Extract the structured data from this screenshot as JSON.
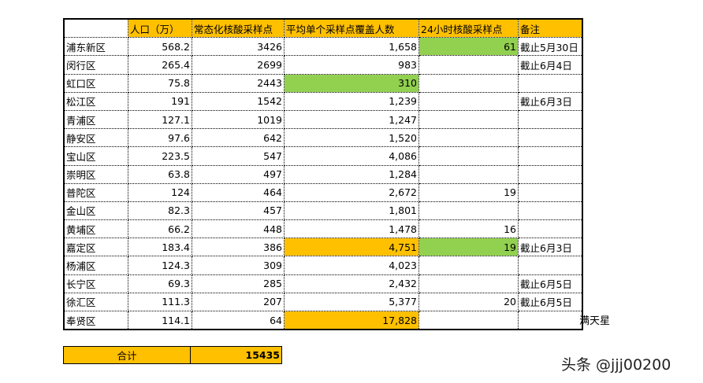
{
  "table": {
    "header": [
      null,
      "人口（万）",
      "常态化核酸采样点",
      "平均单个采样点覆盖人数",
      "24小时核酸采样点",
      "备注"
    ],
    "header_color": "#ffc000",
    "rows": [
      [
        "浦东新区",
        "568.2",
        "3426",
        "1,658",
        "61",
        "截止5月30日"
      ],
      [
        "闵行区",
        "265.4",
        "2699",
        "983",
        null,
        "截止6月4日"
      ],
      [
        "虹口区",
        "75.8",
        "2443",
        "310",
        null,
        null
      ],
      [
        "松江区",
        "191",
        "1542",
        "1,239",
        null,
        "截止6月3日"
      ],
      [
        "青浦区",
        "127.1",
        "1019",
        "1,247",
        null,
        null
      ],
      [
        "静安区",
        "97.6",
        "642",
        "1,520",
        null,
        null
      ],
      [
        "宝山区",
        "223.5",
        "547",
        "4,086",
        null,
        null
      ],
      [
        "崇明区",
        "63.8",
        "497",
        "1,284",
        null,
        null
      ],
      [
        "普陀区",
        "124",
        "464",
        "2,672",
        "19",
        null
      ],
      [
        "金山区",
        "82.3",
        "457",
        "1,801",
        null,
        null
      ],
      [
        "黄埔区",
        "66.2",
        "448",
        "1,478",
        "16",
        null
      ],
      [
        "嘉定区",
        "183.4",
        "386",
        "4,751",
        "19",
        "截止6月3日"
      ],
      [
        "杨浦区",
        "124.3",
        "309",
        "4,023",
        null,
        null
      ],
      [
        "长宁区",
        "69.3",
        "285",
        "2,432",
        null,
        "截止6月5日"
      ],
      [
        "徐汇区",
        "111.3",
        "207",
        "5,377",
        "20",
        "截止6月5日"
      ],
      [
        "奉贤区",
        "114.1",
        "64",
        "17,828",
        null,
        null
      ]
    ],
    "highlights": [
      {
        "row": 0,
        "col": 4,
        "color": "#92d050"
      },
      {
        "row": 2,
        "col": 3,
        "color": "#92d050"
      },
      {
        "row": 11,
        "col": 3,
        "color": "#ffc000"
      },
      {
        "row": 11,
        "col": 4,
        "color": "#92d050"
      },
      {
        "row": 15,
        "col": 3,
        "color": "#ffc000"
      }
    ]
  },
  "side_note": "满天星",
  "total": {
    "label": "合计",
    "value": "15435",
    "color": "#ffc000"
  },
  "watermark": "头条 @jjj00200"
}
